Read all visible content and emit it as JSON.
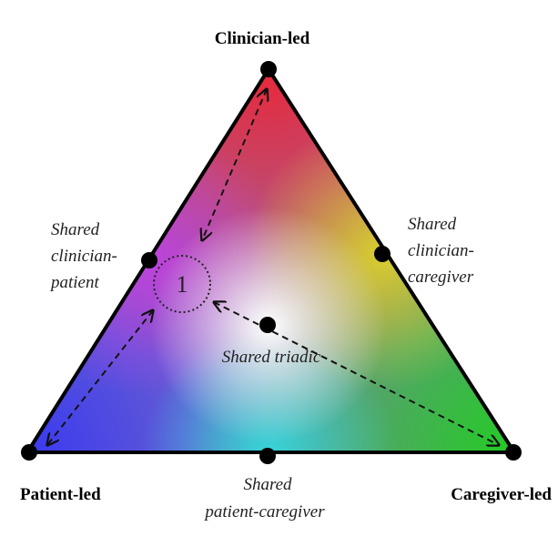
{
  "vertices": {
    "top": "Clinician-led",
    "left": "Patient-led",
    "right": "Caregiver-led"
  },
  "shared": {
    "clinician_patient": [
      "Shared",
      "clinician-",
      "patient"
    ],
    "clinician_caregiver": [
      "Shared",
      "clinician-",
      "caregiver"
    ],
    "patient_caregiver": [
      "Shared",
      "patient-caregiver"
    ],
    "triadic": "Shared triadic"
  },
  "marker": {
    "label": "1"
  },
  "colors": {
    "top": "#e8283a",
    "left": "#3a3af0",
    "right": "#22cc22",
    "edge_left": "#c640e8",
    "edge_right": "#e6e020",
    "edge_bottom": "#30e0e0",
    "stroke": "#000000"
  }
}
